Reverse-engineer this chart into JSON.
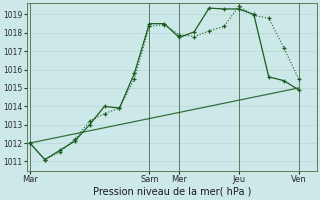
{
  "xlabel": "Pression niveau de la mer( hPa )",
  "background_color": "#cce8e8",
  "grid_color": "#b8d8d8",
  "line_color": "#1a5c20",
  "ylim": [
    1010.5,
    1019.6
  ],
  "xlim": [
    -0.1,
    9.6
  ],
  "day_labels": [
    "Mar",
    "Sam",
    "Mer",
    "Jeu",
    "Ven"
  ],
  "day_positions": [
    0,
    4,
    5,
    7,
    9
  ],
  "series1_x": [
    0,
    0.5,
    1,
    1.5,
    2,
    2.5,
    3,
    3.5,
    4,
    4.5,
    5,
    5.5,
    6,
    6.5,
    7,
    7.5,
    8,
    8.5,
    9
  ],
  "series1_y": [
    1012.0,
    1011.1,
    1011.5,
    1012.2,
    1013.2,
    1013.6,
    1013.9,
    1015.5,
    1018.35,
    1018.45,
    1017.9,
    1017.8,
    1018.1,
    1018.35,
    1019.45,
    1018.95,
    1018.8,
    1017.2,
    1015.5
  ],
  "series2_x": [
    0,
    0.5,
    1,
    1.5,
    2,
    2.5,
    3,
    3.5,
    4,
    4.5,
    5,
    5.5,
    6,
    6.5,
    7,
    7.5,
    8,
    8.5,
    9
  ],
  "series2_y": [
    1012.0,
    1011.1,
    1011.6,
    1012.1,
    1013.0,
    1014.0,
    1013.9,
    1015.8,
    1018.5,
    1018.5,
    1017.75,
    1018.05,
    1019.35,
    1019.3,
    1019.3,
    1019.0,
    1015.6,
    1015.4,
    1014.9
  ],
  "series3_x": [
    0,
    9
  ],
  "series3_y": [
    1012.0,
    1015.0
  ]
}
